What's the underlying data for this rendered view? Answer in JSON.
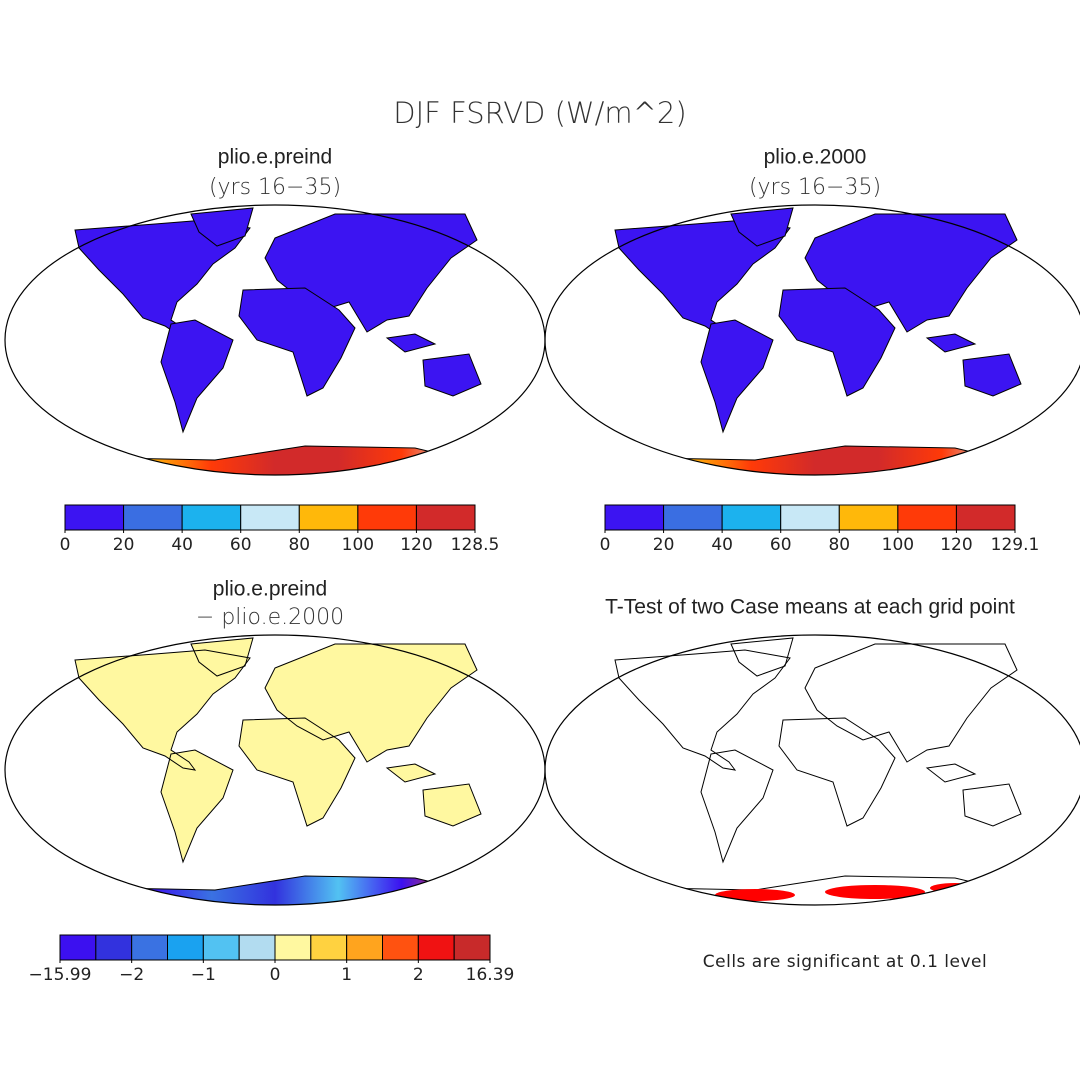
{
  "title": "DJF FSRVD (W/m^2)",
  "panels": [
    {
      "title": "plio.e.preind",
      "subtitle": "(yrs 16−35)",
      "colorbar": {
        "colors": [
          "#3c14f2",
          "#3a6ee2",
          "#1cb2ee",
          "#c8e8f6",
          "#ffb80a",
          "#ff3a08",
          "#d22a2a"
        ],
        "ticks": [
          0,
          20,
          40,
          60,
          80,
          100,
          120,
          128.5
        ]
      }
    },
    {
      "title": "plio.e.2000",
      "subtitle": "(yrs 16−35)",
      "colorbar": {
        "colors": [
          "#3c14f2",
          "#3a6ee2",
          "#1cb2ee",
          "#c8e8f6",
          "#ffb80a",
          "#ff3a08",
          "#d22a2a"
        ],
        "ticks": [
          0,
          20,
          40,
          60,
          80,
          100,
          120,
          129.1
        ]
      }
    },
    {
      "title": "plio.e.preind",
      "subtitle": "− plio.e.2000",
      "colorbar": {
        "colors": [
          "#3c10f0",
          "#3232de",
          "#3a72e2",
          "#1aa2f0",
          "#52c2f2",
          "#b2dcf0",
          "#fff8a0",
          "#ffd240",
          "#ffa41e",
          "#ff5210",
          "#f01212",
          "#c82a2a"
        ],
        "ticks": [
          {
            "value": -15.99,
            "label": "−15.99"
          },
          {
            "value": -2,
            "label": "−2"
          },
          {
            "value": -1,
            "label": "−1"
          },
          0,
          1,
          2,
          16.39
        ]
      }
    },
    {
      "title": "T-Test of two Case means at each grid point",
      "note": "Cells are significant at 0.1 level",
      "color": "#ff0000"
    }
  ]
}
